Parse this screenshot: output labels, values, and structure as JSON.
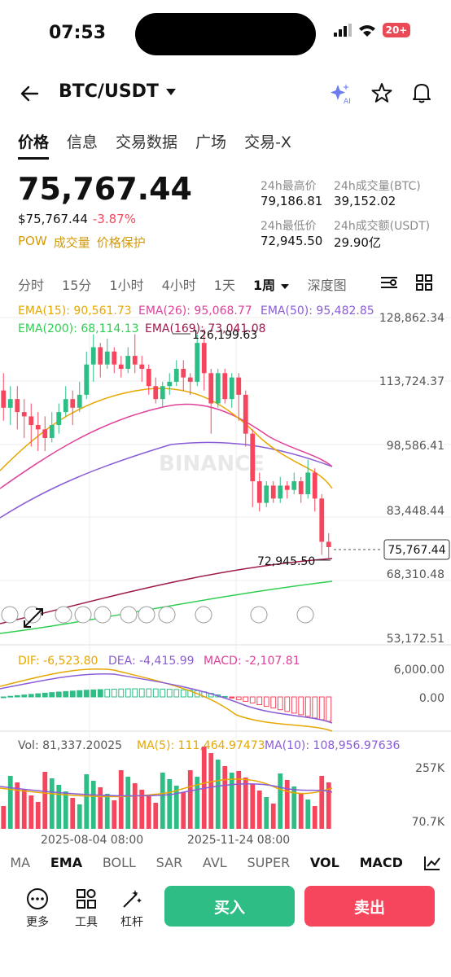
{
  "status": {
    "time": "07:53",
    "battery": "20+"
  },
  "header": {
    "pair": "BTC/USDT",
    "ai_label": "AI"
  },
  "tabs": [
    "价格",
    "信息",
    "交易数据",
    "广场",
    "交易-X"
  ],
  "price": {
    "last": "75,767.44",
    "usd": "$75,767.44",
    "change": "-3.87%",
    "tags": [
      "POW",
      "成交量",
      "价格保护"
    ]
  },
  "stats": {
    "high_label": "24h最高价",
    "high": "79,186.81",
    "vol_btc_label": "24h成交量(BTC)",
    "vol_btc": "39,152.02",
    "low_label": "24h最低价",
    "low": "72,945.50",
    "vol_usdt_label": "24h成交额(USDT)",
    "vol_usdt": "29.90亿"
  },
  "intervals": [
    "分时",
    "15分",
    "1小时",
    "4小时",
    "1天",
    "1周",
    "深度图"
  ],
  "ema_legend": {
    "ema15": "EMA(15): 90,561.73",
    "ema26": "EMA(26): 95,068.77",
    "ema50": "EMA(50): 95,482.85",
    "ema200": "EMA(200): 68,114.13",
    "ema169": "EMA(169): 73,041.08"
  },
  "y_axis": [
    "128,862.34",
    "113,724.37",
    "98,586.41",
    "83,448.44",
    "68,310.48",
    "53,172.51"
  ],
  "annotations": {
    "high": "126,199.63",
    "low": "72,945.50",
    "last": "75,767.44",
    "watermark": "BINANCE"
  },
  "macd_legend": {
    "dif": "DIF: -6,523.80",
    "dea": "DEA: -4,415.99",
    "macd": "MACD: -2,107.81"
  },
  "macd_axis": [
    "6,000.00",
    "0.00"
  ],
  "vol_legend": {
    "vol": "Vol: 81,337.20025",
    "ma5": "MA(5): 111,464.97473",
    "ma10": "MA(10): 108,956.97636"
  },
  "vol_axis": [
    "257K",
    "70.7K"
  ],
  "x_axis": [
    "2025-08-04 08:00",
    "2025-11-24 08:00"
  ],
  "indicator_tabs": [
    "MA",
    "EMA",
    "BOLL",
    "SAR",
    "AVL",
    "SUPER",
    "VOL",
    "MACD"
  ],
  "toolbar": {
    "more": "更多",
    "tools": "工具",
    "leverage": "杠杆",
    "buy": "买入",
    "sell": "卖出"
  },
  "colors": {
    "up": "#2ebd85",
    "down": "#f6465d",
    "ema15": "#e6a700",
    "ema26": "#e0409a",
    "ema50": "#8a5cd6",
    "ema200": "#2fcf52",
    "ema169": "#9c1a4c"
  },
  "chart_data": {
    "type": "candlestick",
    "candles": [
      [
        112000,
        108000,
        116000,
        105000
      ],
      [
        108000,
        110000,
        113000,
        104000
      ],
      [
        110000,
        107000,
        113000,
        103000
      ],
      [
        107000,
        106000,
        110000,
        101000
      ],
      [
        106000,
        104000,
        109000,
        99000
      ],
      [
        104000,
        103000,
        107000,
        98000
      ],
      [
        103000,
        101000,
        106000,
        98000
      ],
      [
        101000,
        104000,
        107000,
        100000
      ],
      [
        104000,
        107000,
        109000,
        102000
      ],
      [
        107000,
        110000,
        113000,
        106000
      ],
      [
        110000,
        108000,
        112000,
        104000
      ],
      [
        108000,
        111000,
        114000,
        107000
      ],
      [
        111000,
        118000,
        121000,
        110000
      ],
      [
        118000,
        122000,
        125000,
        114000
      ],
      [
        122000,
        118000,
        123000,
        115000
      ],
      [
        118000,
        121000,
        124000,
        117000
      ],
      [
        121000,
        118000,
        122000,
        116000
      ],
      [
        118000,
        117000,
        120000,
        115000
      ],
      [
        117000,
        120000,
        122000,
        116000
      ],
      [
        120000,
        118000,
        125000,
        116000
      ],
      [
        118000,
        117000,
        120000,
        114000
      ],
      [
        117000,
        113000,
        118000,
        111000
      ],
      [
        113000,
        110000,
        115000,
        109000
      ],
      [
        110000,
        113000,
        114000,
        108000
      ],
      [
        113000,
        114000,
        116000,
        111000
      ],
      [
        114000,
        117000,
        119000,
        113000
      ],
      [
        117000,
        115000,
        119000,
        112000
      ],
      [
        115000,
        114000,
        116000,
        111000
      ],
      [
        114000,
        123000,
        125000,
        113000
      ],
      [
        123000,
        116000,
        126199,
        112000
      ],
      [
        116000,
        109000,
        117000,
        102000
      ],
      [
        109000,
        116000,
        117000,
        108000
      ],
      [
        116000,
        110000,
        117000,
        109000
      ],
      [
        110000,
        115000,
        116000,
        108000
      ],
      [
        115000,
        111000,
        116000,
        105000
      ],
      [
        111000,
        102000,
        112000,
        99000
      ],
      [
        102000,
        91000,
        103000,
        85000
      ],
      [
        91000,
        86000,
        93000,
        84000
      ],
      [
        86000,
        90000,
        91000,
        85000
      ],
      [
        90000,
        87000,
        91000,
        86000
      ],
      [
        87000,
        90000,
        92000,
        86000
      ],
      [
        90000,
        89000,
        91000,
        87000
      ],
      [
        89000,
        91000,
        93000,
        88000
      ],
      [
        91000,
        88000,
        92000,
        86000
      ],
      [
        88000,
        93000,
        96000,
        87000
      ],
      [
        93000,
        87000,
        94000,
        84000
      ],
      [
        87000,
        77000,
        88000,
        74000
      ],
      [
        77000,
        75767,
        79000,
        72945
      ]
    ]
  }
}
